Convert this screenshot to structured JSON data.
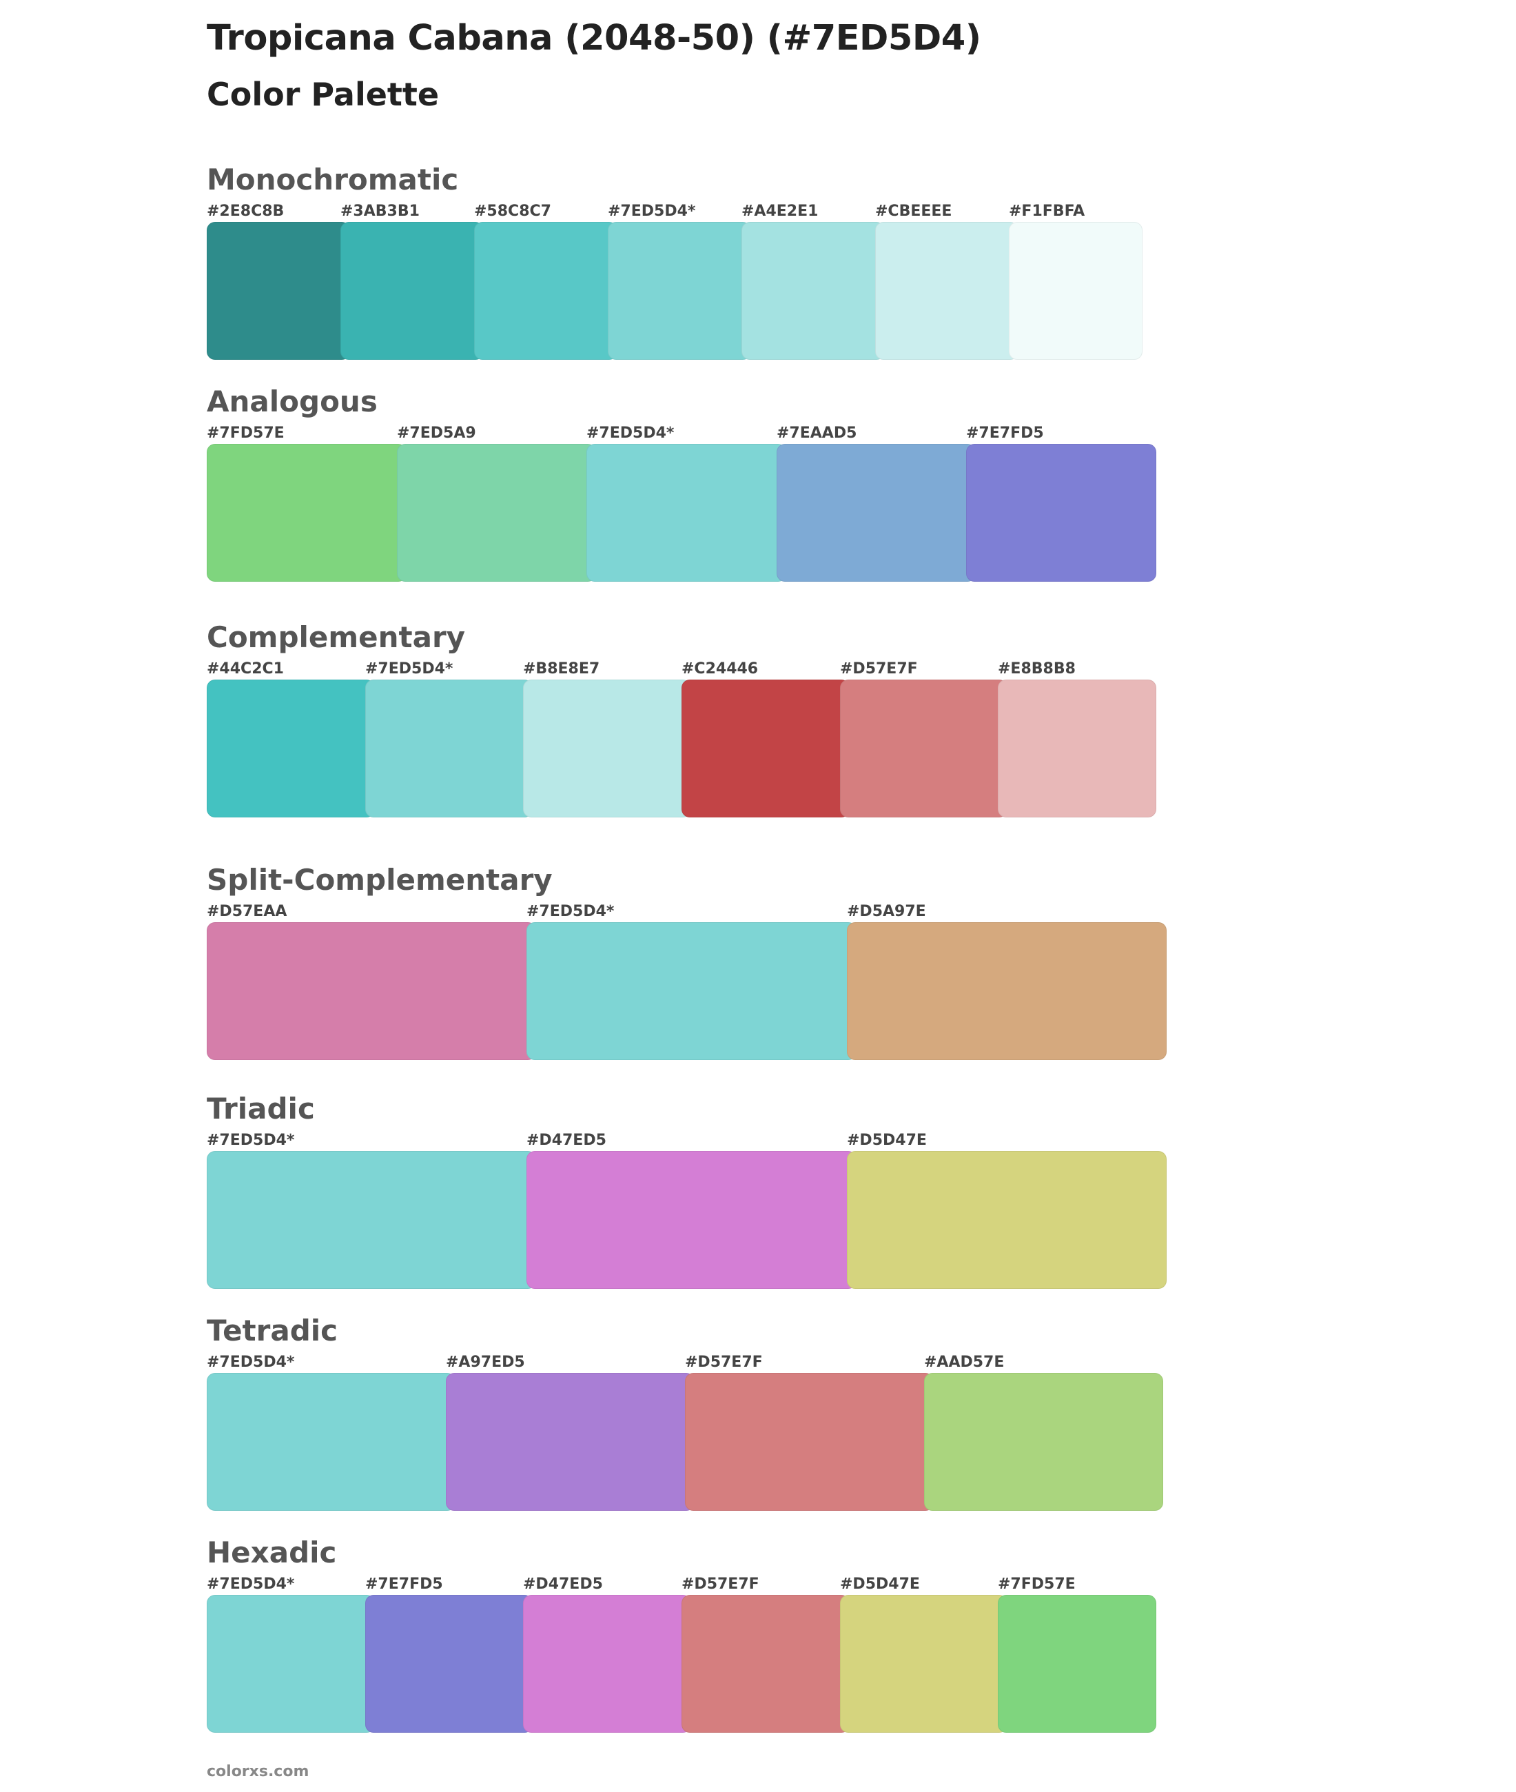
{
  "header": {
    "title": "Tropicana Cabana (2048-50) (#7ED5D4)",
    "subtitle": "Color Palette"
  },
  "sections": [
    {
      "title": "Monochromatic",
      "colors": [
        {
          "label": "#2E8C8B",
          "hex": "#2E8C8B"
        },
        {
          "label": "#3AB3B1",
          "hex": "#3AB3B1"
        },
        {
          "label": "#58C8C7",
          "hex": "#58C8C7"
        },
        {
          "label": "#7ED5D4*",
          "hex": "#7ED5D4"
        },
        {
          "label": "#A4E2E1",
          "hex": "#A4E2E1"
        },
        {
          "label": "#CBEEEE",
          "hex": "#CBEEEE"
        },
        {
          "label": "#F1FBFA",
          "hex": "#F1FBFA"
        }
      ]
    },
    {
      "title": "Analogous",
      "colors": [
        {
          "label": "#7FD57E",
          "hex": "#7FD57E"
        },
        {
          "label": "#7ED5A9",
          "hex": "#7ED5A9"
        },
        {
          "label": "#7ED5D4*",
          "hex": "#7ED5D4"
        },
        {
          "label": "#7EAAD5",
          "hex": "#7EAAD5"
        },
        {
          "label": "#7E7FD5",
          "hex": "#7E7FD5"
        }
      ]
    },
    {
      "title": "Complementary",
      "colors": [
        {
          "label": "#44C2C1",
          "hex": "#44C2C1"
        },
        {
          "label": "#7ED5D4*",
          "hex": "#7ED5D4"
        },
        {
          "label": "#B8E8E7",
          "hex": "#B8E8E7"
        },
        {
          "label": "#C24446",
          "hex": "#C24446"
        },
        {
          "label": "#D57E7F",
          "hex": "#D57E7F"
        },
        {
          "label": "#E8B8B8",
          "hex": "#E8B8B8"
        }
      ]
    },
    {
      "title": "Split-Complementary",
      "colors": [
        {
          "label": "#D57EAA",
          "hex": "#D57EAA"
        },
        {
          "label": "#7ED5D4*",
          "hex": "#7ED5D4"
        },
        {
          "label": "#D5A97E",
          "hex": "#D5A97E"
        }
      ]
    },
    {
      "title": "Triadic",
      "colors": [
        {
          "label": "#7ED5D4*",
          "hex": "#7ED5D4"
        },
        {
          "label": "#D47ED5",
          "hex": "#D47ED5"
        },
        {
          "label": "#D5D47E",
          "hex": "#D5D47E"
        }
      ]
    },
    {
      "title": "Tetradic",
      "colors": [
        {
          "label": "#7ED5D4*",
          "hex": "#7ED5D4"
        },
        {
          "label": "#A97ED5",
          "hex": "#A97ED5"
        },
        {
          "label": "#D57E7F",
          "hex": "#D57E7F"
        },
        {
          "label": "#AAD57E",
          "hex": "#AAD57E"
        }
      ]
    },
    {
      "title": "Hexadic",
      "colors": [
        {
          "label": "#7ED5D4*",
          "hex": "#7ED5D4"
        },
        {
          "label": "#7E7FD5",
          "hex": "#7E7FD5"
        },
        {
          "label": "#D47ED5",
          "hex": "#D47ED5"
        },
        {
          "label": "#D57E7F",
          "hex": "#D57E7F"
        },
        {
          "label": "#D5D47E",
          "hex": "#D5D47E"
        },
        {
          "label": "#7FD57E",
          "hex": "#7FD57E"
        }
      ]
    }
  ],
  "footer": {
    "text": "colorxs.com"
  }
}
